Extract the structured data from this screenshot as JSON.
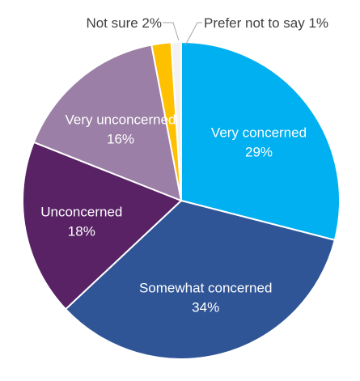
{
  "chart_data": {
    "type": "pie",
    "title": "",
    "slices": [
      {
        "label": "Very concerned",
        "value": 29,
        "value_label": "29%",
        "color": "#00b0f0",
        "label_style": "inside",
        "label_color": "#ffffff"
      },
      {
        "label": "Somewhat concerned",
        "value": 34,
        "value_label": "34%",
        "color": "#2f5597",
        "label_style": "inside",
        "label_color": "#ffffff"
      },
      {
        "label": "Unconcerned",
        "value": 18,
        "value_label": "18%",
        "color": "#582265",
        "label_style": "inside",
        "label_color": "#ffffff"
      },
      {
        "label": "Very unconcerned",
        "value": 16,
        "value_label": "16%",
        "color": "#9b7fa6",
        "label_style": "inside",
        "label_color": "#ffffff"
      },
      {
        "label": "Not sure",
        "value": 2,
        "value_label": "2%",
        "color": "#ffc000",
        "label_style": "outside",
        "label_color": "#404040"
      },
      {
        "label": "Prefer not to say",
        "value": 1,
        "value_label": "1%",
        "color": "#f2f2f2",
        "label_style": "outside",
        "label_color": "#404040"
      }
    ],
    "start": "12 o'clock",
    "direction": "clockwise",
    "legend": "none"
  }
}
